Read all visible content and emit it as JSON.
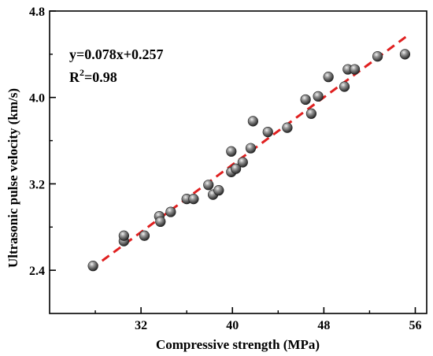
{
  "chart_data": {
    "type": "scatter",
    "xlabel": "Compressive strength (MPa)",
    "ylabel": "Ultrasonic pulse velocity (km/s)",
    "xlim": [
      24,
      57
    ],
    "ylim": [
      2.0,
      4.8
    ],
    "xticks": [
      32,
      40,
      48,
      56
    ],
    "yticks": [
      2.4,
      3.2,
      4.0,
      4.8
    ],
    "grid": false,
    "annotation": {
      "equation": "y=0.078x+0.257",
      "r2_prefix": "R",
      "r2_sup": "2",
      "r2_suffix": "=0.98"
    },
    "fit": {
      "slope": 0.078,
      "intercept": 0.257,
      "x_range": [
        27.6,
        55.3
      ],
      "color": "#e02020"
    },
    "marker_color": "#555555",
    "points": [
      {
        "x": 27.8,
        "y": 2.44
      },
      {
        "x": 30.5,
        "y": 2.67
      },
      {
        "x": 30.5,
        "y": 2.72
      },
      {
        "x": 32.3,
        "y": 2.72
      },
      {
        "x": 33.6,
        "y": 2.9
      },
      {
        "x": 33.7,
        "y": 2.85
      },
      {
        "x": 34.6,
        "y": 2.94
      },
      {
        "x": 36.0,
        "y": 3.06
      },
      {
        "x": 36.6,
        "y": 3.06
      },
      {
        "x": 37.9,
        "y": 3.19
      },
      {
        "x": 38.3,
        "y": 3.1
      },
      {
        "x": 38.8,
        "y": 3.14
      },
      {
        "x": 39.9,
        "y": 3.31
      },
      {
        "x": 40.3,
        "y": 3.34
      },
      {
        "x": 40.9,
        "y": 3.4
      },
      {
        "x": 39.9,
        "y": 3.5
      },
      {
        "x": 41.6,
        "y": 3.53
      },
      {
        "x": 41.8,
        "y": 3.78
      },
      {
        "x": 43.1,
        "y": 3.68
      },
      {
        "x": 44.8,
        "y": 3.72
      },
      {
        "x": 46.4,
        "y": 3.98
      },
      {
        "x": 46.9,
        "y": 3.85
      },
      {
        "x": 47.5,
        "y": 4.01
      },
      {
        "x": 48.4,
        "y": 4.19
      },
      {
        "x": 49.8,
        "y": 4.1
      },
      {
        "x": 50.1,
        "y": 4.26
      },
      {
        "x": 50.7,
        "y": 4.26
      },
      {
        "x": 52.7,
        "y": 4.38
      },
      {
        "x": 55.1,
        "y": 4.4
      }
    ]
  }
}
